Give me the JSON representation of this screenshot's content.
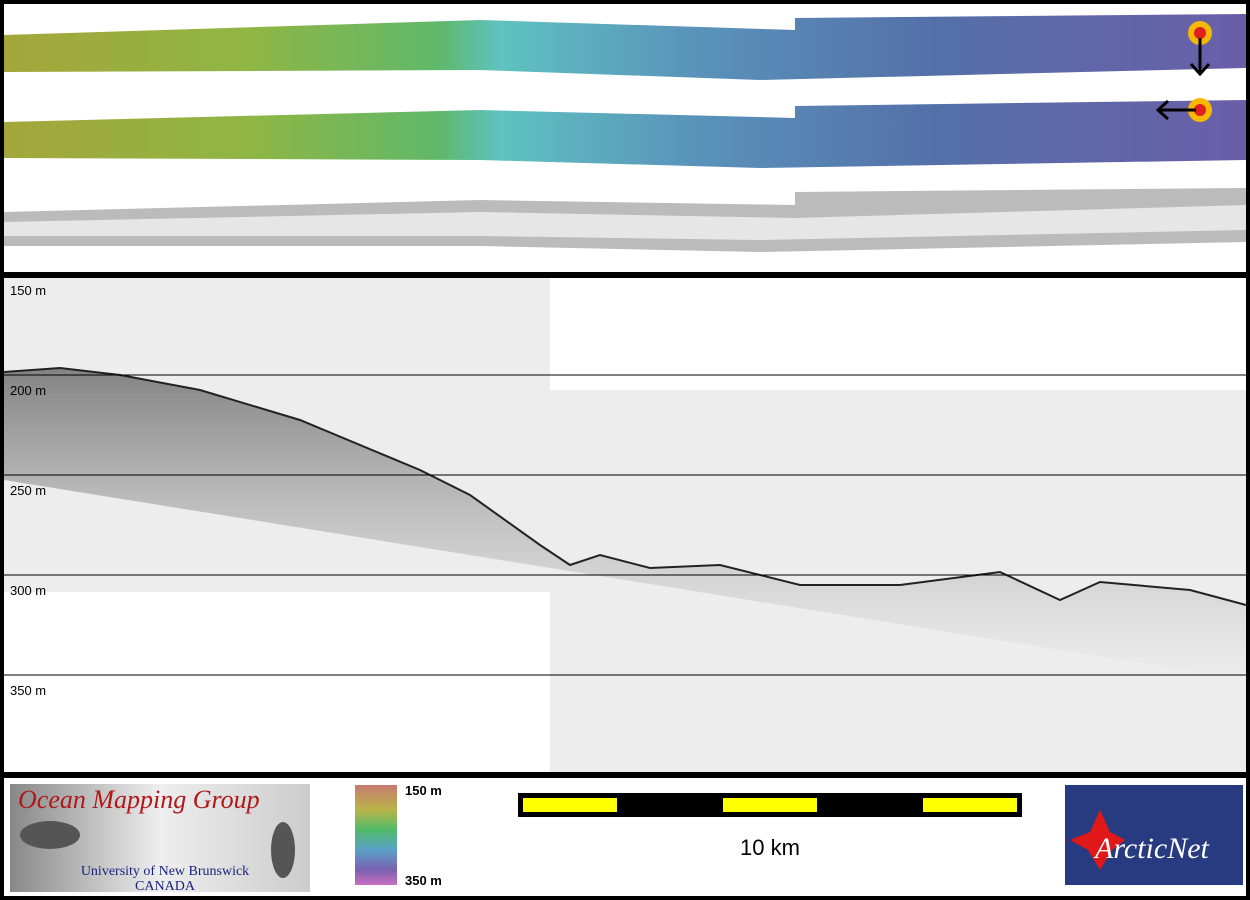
{
  "profile": {
    "depth_labels": [
      "150 m",
      "200 m",
      "250 m",
      "300 m",
      "350 m"
    ]
  },
  "footer": {
    "logo": {
      "title": "Ocean Mapping Group",
      "university": "University of New Brunswick",
      "country": "CANADA"
    },
    "colorbar": {
      "top": "150 m",
      "bottom": "350 m"
    },
    "scale_bar": {
      "label": "10 km"
    },
    "partner": {
      "name": "ArcticNet"
    }
  }
}
